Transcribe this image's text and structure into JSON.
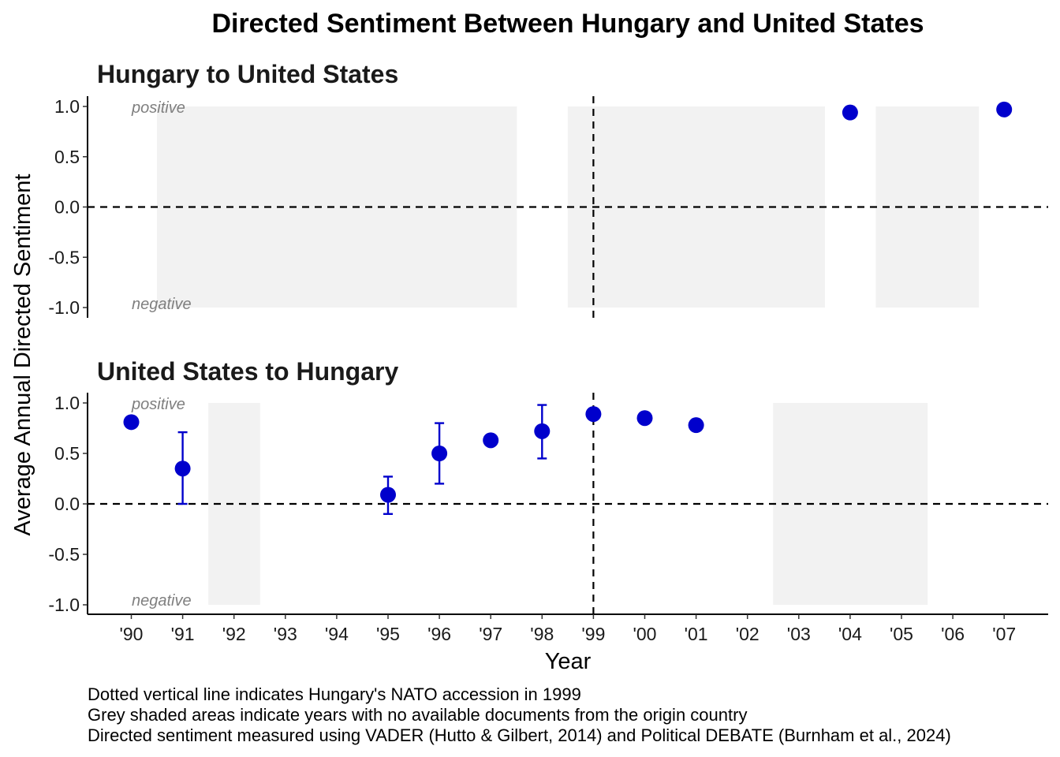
{
  "chart_data": {
    "type": "scatter",
    "title": "Directed Sentiment Between Hungary and United States",
    "xlabel": "Year",
    "ylabel": "Average Annual Directed Sentiment",
    "ylim": [
      -1.0,
      1.0
    ],
    "y_ticks": [
      "1.0",
      "0.5",
      "0.0",
      "-0.5",
      "-1.0"
    ],
    "y_tick_values": [
      1.0,
      0.5,
      0.0,
      -0.5,
      -1.0
    ],
    "years": [
      1990,
      1991,
      1992,
      1993,
      1994,
      1995,
      1996,
      1997,
      1998,
      1999,
      2000,
      2001,
      2002,
      2003,
      2004,
      2005,
      2006,
      2007
    ],
    "x_tick_labels": [
      "'90",
      "'91",
      "'92",
      "'93",
      "'94",
      "'95",
      "'96",
      "'97",
      "'98",
      "'99",
      "'00",
      "'01",
      "'02",
      "'03",
      "'04",
      "'05",
      "'06",
      "'07"
    ],
    "nato_accession_year": 1999,
    "zero_reference_line": 0,
    "band_top_label": "positive",
    "band_bottom_label": "negative",
    "point_color": "#0000CC",
    "shade_color": "#F2F2F2",
    "panels": [
      {
        "title": "Hungary to United States",
        "points": [
          {
            "year": 2004,
            "value": 0.94
          },
          {
            "year": 2007,
            "value": 0.97
          }
        ],
        "no_document_years": [
          1991,
          1992,
          1993,
          1994,
          1995,
          1996,
          1997,
          1999,
          2000,
          2001,
          2002,
          2003,
          2005,
          2006
        ]
      },
      {
        "title": "United States to Hungary",
        "points": [
          {
            "year": 1990,
            "value": 0.81
          },
          {
            "year": 1991,
            "value": 0.35,
            "low": 0.0,
            "high": 0.71
          },
          {
            "year": 1995,
            "value": 0.09,
            "low": -0.1,
            "high": 0.27
          },
          {
            "year": 1996,
            "value": 0.5,
            "low": 0.2,
            "high": 0.8
          },
          {
            "year": 1997,
            "value": 0.63
          },
          {
            "year": 1998,
            "value": 0.72,
            "low": 0.45,
            "high": 0.98
          },
          {
            "year": 1999,
            "value": 0.89
          },
          {
            "year": 2000,
            "value": 0.85
          },
          {
            "year": 2001,
            "value": 0.78,
            "low": 0.74,
            "high": 0.81
          }
        ],
        "no_document_years": [
          1992,
          2003,
          2004,
          2005
        ]
      }
    ],
    "notes": [
      "Dotted vertical line indicates Hungary's NATO accession in 1999",
      "Grey shaded areas indicate years with no available documents from the origin country",
      "Directed sentiment measured using VADER (Hutto & Gilbert, 2014) and Political DEBATE (Burnham et al., 2024)"
    ]
  }
}
